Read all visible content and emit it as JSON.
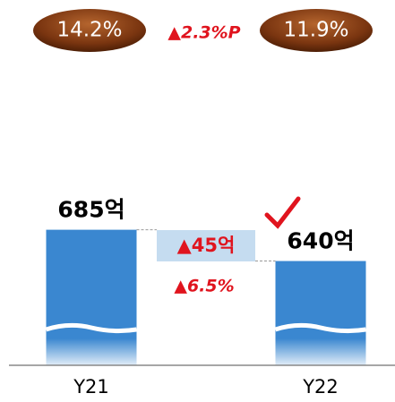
{
  "chart_data": {
    "type": "bar",
    "categories": [
      "Y21",
      "Y22"
    ],
    "values": [
      685,
      640
    ],
    "value_labels": [
      "685억",
      "640억"
    ],
    "color": "#3a87d0",
    "ylim": [
      490,
      964
    ],
    "rate_labels": [
      "14.2%",
      "11.9%"
    ],
    "annotations": {
      "rate_change": "▲2.3%P",
      "diff": "▲45억",
      "diff_pct": "▲6.5%"
    }
  }
}
